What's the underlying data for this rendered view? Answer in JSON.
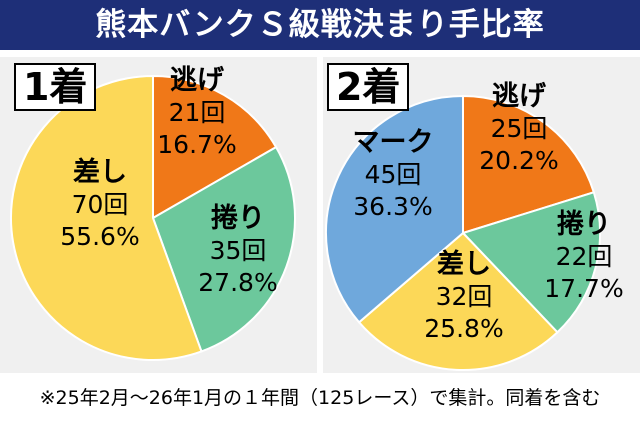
{
  "title": "熊本バンクＳ級戦決まり手比率",
  "colors": {
    "title_bg": "#1e2f78",
    "panel_bg": "#f0f0f0",
    "nige": "#f07818",
    "makuri": "#6cc89c",
    "sashi": "#fcd858",
    "mark": "#6fa8dc"
  },
  "chart_data": [
    {
      "type": "pie",
      "title": "1着",
      "slices": [
        {
          "label": "逃げ",
          "count": "21回",
          "percent": "16.7%",
          "value": 16.7,
          "color": "#f07818"
        },
        {
          "label": "捲り",
          "count": "35回",
          "percent": "27.8%",
          "value": 27.8,
          "color": "#6cc89c"
        },
        {
          "label": "差し",
          "count": "70回",
          "percent": "55.6%",
          "value": 55.6,
          "color": "#fcd858"
        }
      ]
    },
    {
      "type": "pie",
      "title": "2着",
      "slices": [
        {
          "label": "逃げ",
          "count": "25回",
          "percent": "20.2%",
          "value": 20.2,
          "color": "#f07818"
        },
        {
          "label": "捲り",
          "count": "22回",
          "percent": "17.7%",
          "value": 17.7,
          "color": "#6cc89c"
        },
        {
          "label": "差し",
          "count": "32回",
          "percent": "25.8%",
          "value": 25.8,
          "color": "#fcd858"
        },
        {
          "label": "マーク",
          "count": "45回",
          "percent": "36.3%",
          "value": 36.3,
          "color": "#6fa8dc"
        }
      ]
    }
  ],
  "footnote": "※25年2月～26年1月の１年間（125レース）で集計。同着を含む"
}
